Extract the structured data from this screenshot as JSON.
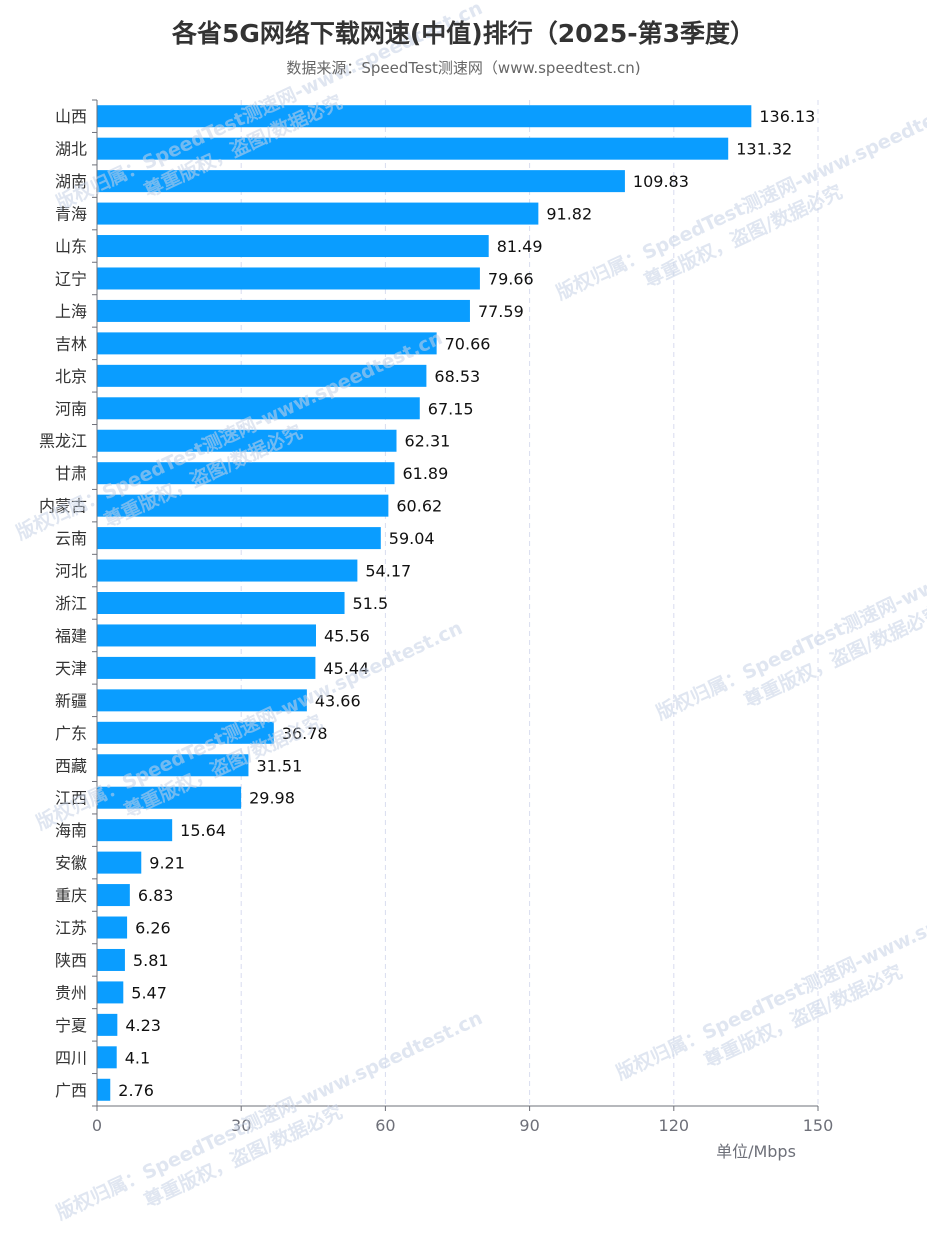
{
  "header": {
    "title": "各省5G网络下载网速(中值)排行（2025-第3季度）",
    "subtitle": "数据来源：SpeedTest测速网（www.speedtest.cn)"
  },
  "colors": {
    "bar": "#0a9dff",
    "grid": "#d8dcef",
    "axis": "#6e7079",
    "text": "#333333"
  },
  "chart_data": {
    "type": "bar",
    "orientation": "horizontal",
    "categories": [
      "山西",
      "湖北",
      "湖南",
      "青海",
      "山东",
      "辽宁",
      "上海",
      "吉林",
      "北京",
      "河南",
      "黑龙江",
      "甘肃",
      "内蒙古",
      "云南",
      "河北",
      "浙江",
      "福建",
      "天津",
      "新疆",
      "广东",
      "西藏",
      "江西",
      "海南",
      "安徽",
      "重庆",
      "江苏",
      "陕西",
      "贵州",
      "宁夏",
      "四川",
      "广西"
    ],
    "values": [
      136.13,
      131.32,
      109.83,
      91.82,
      81.49,
      79.66,
      77.59,
      70.66,
      68.53,
      67.15,
      62.31,
      61.89,
      60.62,
      59.04,
      54.17,
      51.5,
      45.56,
      45.44,
      43.66,
      36.78,
      31.51,
      29.98,
      15.64,
      9.21,
      6.83,
      6.26,
      5.81,
      5.47,
      4.23,
      4.1,
      2.76
    ],
    "value_labels": [
      "136.13",
      "131.32",
      "109.83",
      "91.82",
      "81.49",
      "79.66",
      "77.59",
      "70.66",
      "68.53",
      "67.15",
      "62.31",
      "61.89",
      "60.62",
      "59.04",
      "54.17",
      "51.5",
      "45.56",
      "45.44",
      "43.66",
      "36.78",
      "31.51",
      "29.98",
      "15.64",
      "9.21",
      "6.83",
      "6.26",
      "5.81",
      "5.47",
      "4.23",
      "4.1",
      "2.76"
    ],
    "xlim": [
      0,
      150
    ],
    "xticks": [
      "0",
      "30",
      "60",
      "90",
      "120",
      "150"
    ],
    "xlabel": "单位/Mbps",
    "grid": true
  },
  "watermark": {
    "line1": "版权归属：SpeedTest测速网-www.speedtest.cn",
    "line2": "尊重版权，盗图/数据必究"
  }
}
